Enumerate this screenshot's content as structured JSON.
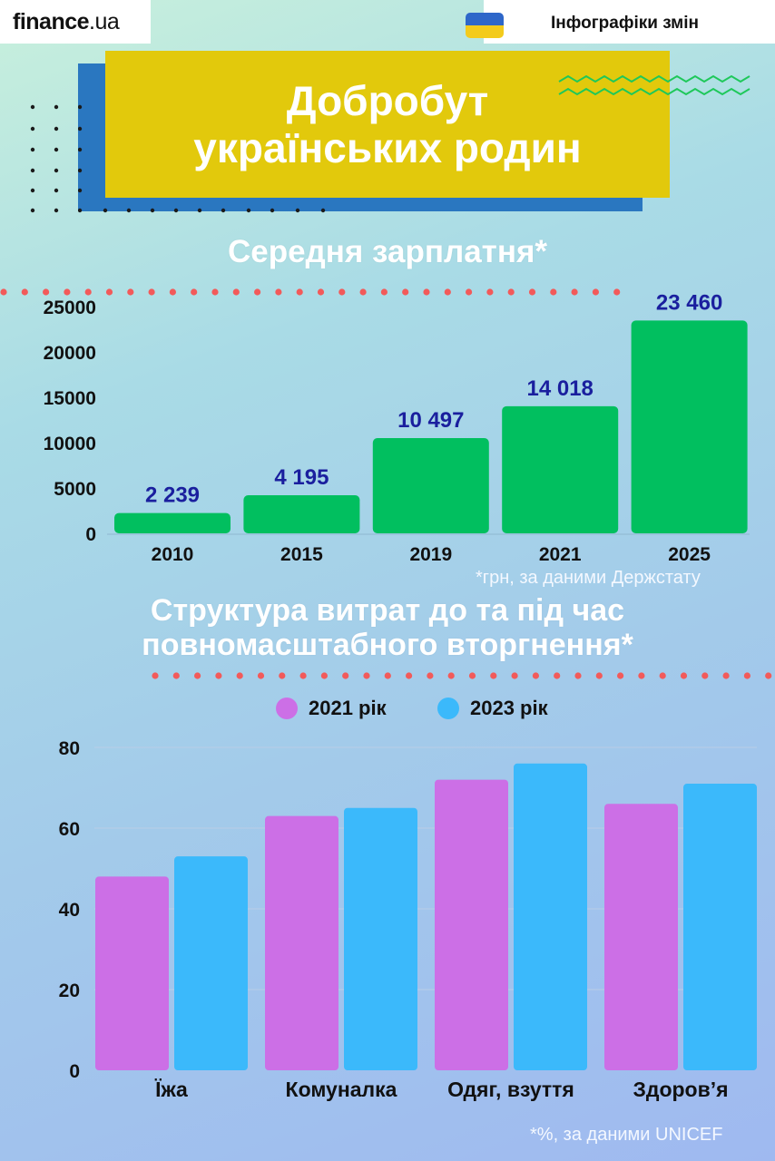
{
  "header": {
    "logo_main": "finance",
    "logo_suffix": ".ua",
    "brand": "Інфографіки змін"
  },
  "title": {
    "line1": "Добробут",
    "line2": "українських родин"
  },
  "colors": {
    "salary_bar": "#01bf5f",
    "salary_label": "#1a1f9e",
    "series_2021": "#cc6fe6",
    "series_2023": "#3bb9fb",
    "dotted_line": "#f25a5a",
    "title_yellow": "#e2c90c",
    "title_blue": "#2a77c0"
  },
  "icons": {
    "flag": "ukraine-flag-icon",
    "zigzag": "zigzag-decoration",
    "dots": "dot-grid-decoration"
  },
  "chart_data": [
    {
      "type": "bar",
      "title": "Середня зарплатня*",
      "categories": [
        "2010",
        "2015",
        "2019",
        "2021",
        "2025"
      ],
      "values": [
        2239,
        4195,
        10497,
        14018,
        23460
      ],
      "value_labels": [
        "2 239",
        "4 195",
        "10 497",
        "14 018",
        "23 460"
      ],
      "yticks": [
        "0",
        "5000",
        "10000",
        "15000",
        "20000",
        "25000"
      ],
      "ylim": [
        0,
        25000
      ],
      "note": "*грн, за даними Держстату",
      "grid": false
    },
    {
      "type": "bar",
      "title_line1": "Структура витрат до та під час",
      "title_line2": "повномасштабного вторгнення*",
      "categories": [
        "Їжа",
        "Комуналка",
        "Одяг, взуття",
        "Здоров’я"
      ],
      "series": [
        {
          "name": "2021 рік",
          "values": [
            48,
            63,
            72,
            66
          ]
        },
        {
          "name": "2023 рік",
          "values": [
            53,
            65,
            76,
            71
          ]
        }
      ],
      "yticks": [
        "0",
        "20",
        "40",
        "60",
        "80"
      ],
      "ylim": [
        0,
        80
      ],
      "legend_position": "top-center",
      "grid": true,
      "note": "*%, за даними UNICEF"
    }
  ]
}
